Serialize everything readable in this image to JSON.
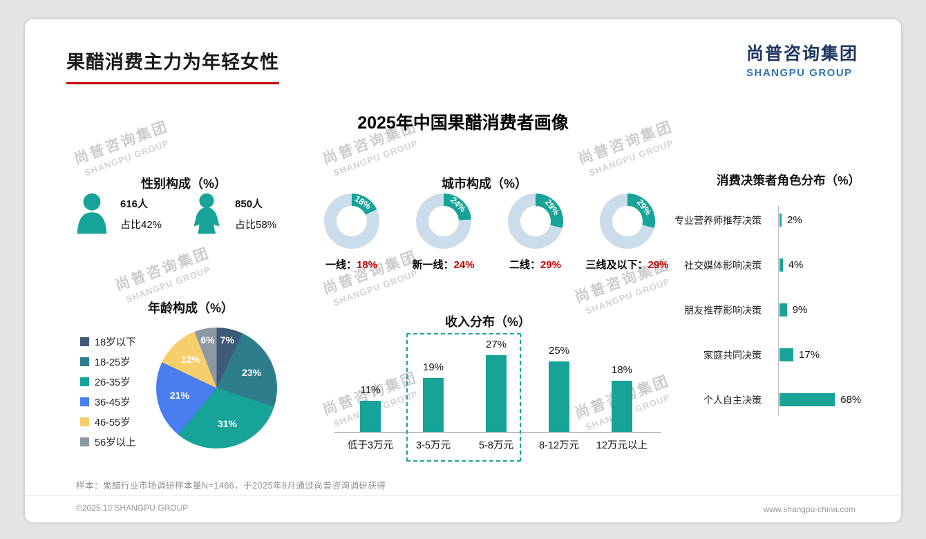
{
  "page": {
    "title": "果醋消费主力为年轻女性",
    "main_title": "2025年中国果醋消费者画像",
    "logo": {
      "cn": "尚普咨询集团",
      "en": "SHANGPU GROUP"
    },
    "watermark": {
      "cn": "尚普咨询集团",
      "en": "SHANGPU GROUP"
    },
    "sample_note": "样本：果醋行业市场调研样本量N=1466，于2025年8月通过尚普咨询调研获得",
    "footer": {
      "left": "©2025.10 SHANGPU GROUP",
      "right": "www.shangpu-china.com"
    }
  },
  "colors": {
    "teal": "#17A398",
    "donut_rest": "#CBDCEA",
    "accent_red": "#C00000",
    "pie": [
      "#3D5A78",
      "#2E7D8C",
      "#17A398",
      "#4A7DF0",
      "#F6CE6B",
      "#8C98A4"
    ]
  },
  "chart_data": [
    {
      "id": "gender",
      "type": "pictogram",
      "title": "性别构成（%）",
      "items": [
        {
          "gender": "male",
          "count": "616人",
          "share": "占比42%"
        },
        {
          "gender": "female",
          "count": "850人",
          "share": "占比58%"
        }
      ]
    },
    {
      "id": "city",
      "type": "donut",
      "title": "城市构成（%）",
      "items": [
        {
          "label": "一线",
          "value": 18
        },
        {
          "label": "新一线",
          "value": 24
        },
        {
          "label": "二线",
          "value": 29
        },
        {
          "label": "三线及以下",
          "value": 29
        }
      ]
    },
    {
      "id": "age",
      "type": "pie",
      "title": "年龄构成（%）",
      "categories": [
        "18岁以下",
        "18-25岁",
        "26-35岁",
        "36-45岁",
        "46-55岁",
        "56岁以上"
      ],
      "values": [
        7,
        23,
        31,
        21,
        12,
        6
      ],
      "legend_position": "left"
    },
    {
      "id": "income",
      "type": "bar",
      "title": "收入分布（%）",
      "categories": [
        "低于3万元",
        "3-5万元",
        "5-8万元",
        "8-12万元",
        "12万元以上"
      ],
      "values": [
        11,
        19,
        27,
        25,
        18
      ],
      "highlight": [
        "3-5万元",
        "5-8万元"
      ]
    },
    {
      "id": "decision",
      "type": "hbar",
      "title": "消费决策者角色分布（%）",
      "categories": [
        "专业营养师推荐决策",
        "社交媒体影响决策",
        "朋友推荐影响决策",
        "家庭共同决策",
        "个人自主决策"
      ],
      "values": [
        2,
        4,
        9,
        17,
        68
      ]
    }
  ]
}
